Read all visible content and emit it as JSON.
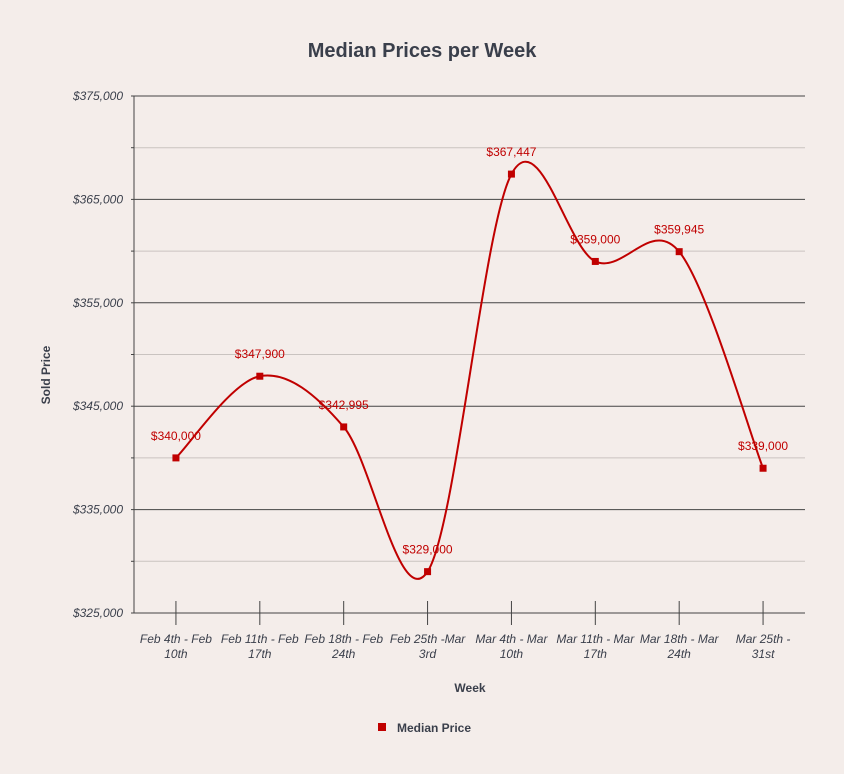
{
  "chart_data": {
    "type": "line",
    "title": "Median Prices per Week",
    "xlabel": "Week",
    "ylabel": "Sold Price",
    "categories": [
      [
        "Feb 4th - Feb",
        "10th"
      ],
      [
        "Feb 11th - Feb",
        "17th"
      ],
      [
        "Feb 18th - Feb",
        "24th"
      ],
      [
        "Feb 25th -Mar",
        "3rd"
      ],
      [
        "Mar 4th - Mar",
        "10th"
      ],
      [
        "Mar 11th - Mar",
        "17th"
      ],
      [
        "Mar 18th - Mar",
        "24th"
      ],
      [
        "Mar 25th -",
        "31st"
      ]
    ],
    "series": [
      {
        "name": "Median Price",
        "color": "#c00000",
        "values": [
          340000,
          347900,
          342995,
          329000,
          367447,
          359000,
          359945,
          339000
        ],
        "labels": [
          "$340,000",
          "$347,900",
          "$342,995",
          "$329,000",
          "$367,447",
          "$359,000",
          "$359,945",
          "$339,000"
        ]
      }
    ],
    "ylim": [
      325000,
      375000
    ],
    "yticks": [
      325000,
      335000,
      345000,
      355000,
      365000,
      375000
    ],
    "ytick_labels": [
      "$325,000",
      "$335,000",
      "$345,000",
      "$355,000",
      "$365,000",
      "$375,000"
    ],
    "grid": true,
    "legend_position": "bottom",
    "smooth": true
  }
}
